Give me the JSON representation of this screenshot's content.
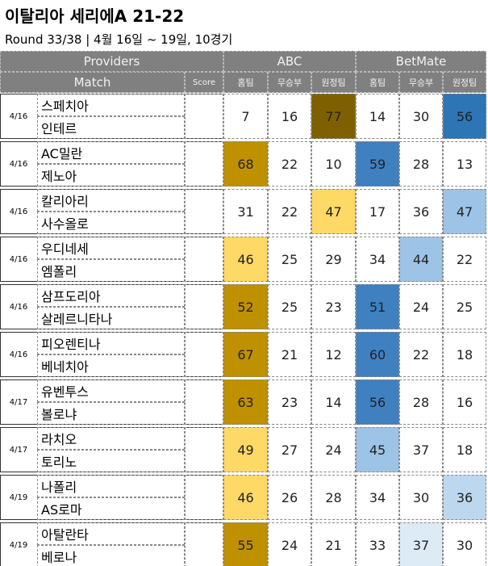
{
  "header": {
    "title": "이탈리아 세리에A 21-22",
    "subtitle": "Round 33/38 | 4월 16일 ~ 19일, 10경기"
  },
  "table": {
    "group_headers": [
      "Providers",
      "ABC",
      "BetMate"
    ],
    "columns": [
      "Match",
      "Score",
      "홈팀",
      "무승부",
      "원정팀",
      "홈팀",
      "무승부",
      "원정팀"
    ],
    "header_color": "#808080",
    "rows": [
      {
        "date": "4/16",
        "home": "스페치아",
        "away": "인테르",
        "abc": [
          7,
          16,
          77
        ],
        "betmate": [
          14,
          30,
          56
        ],
        "abc_colors": [
          null,
          null,
          "#7f6000"
        ],
        "betmate_colors": [
          null,
          null,
          "#2e75b6"
        ]
      },
      {
        "date": "4/16",
        "home": "AC밀란",
        "away": "제노아",
        "abc": [
          68,
          22,
          10
        ],
        "betmate": [
          59,
          28,
          13
        ],
        "abc_colors": [
          "#bf9000",
          null,
          null
        ],
        "betmate_colors": [
          "#3f80c0",
          null,
          null
        ]
      },
      {
        "date": "4/16",
        "home": "칼리아리",
        "away": "사수올로",
        "abc": [
          31,
          22,
          47
        ],
        "betmate": [
          17,
          36,
          47
        ],
        "abc_colors": [
          null,
          null,
          "#ffd966"
        ],
        "betmate_colors": [
          null,
          null,
          "#9dc3e6"
        ]
      },
      {
        "date": "4/16",
        "home": "우디네세",
        "away": "엠폴리",
        "abc": [
          46,
          25,
          29
        ],
        "betmate": [
          34,
          44,
          22
        ],
        "abc_colors": [
          "#ffd966",
          null,
          null
        ],
        "betmate_colors": [
          null,
          "#9dc3e6",
          null
        ]
      },
      {
        "date": "4/16",
        "home": "삼프도리아",
        "away": "살레르니타나",
        "abc": [
          52,
          25,
          23
        ],
        "betmate": [
          51,
          24,
          25
        ],
        "abc_colors": [
          "#bf9000",
          null,
          null
        ],
        "betmate_colors": [
          "#3f80c0",
          null,
          null
        ]
      },
      {
        "date": "4/16",
        "home": "피오렌티나",
        "away": "베네치아",
        "abc": [
          67,
          21,
          12
        ],
        "betmate": [
          60,
          22,
          18
        ],
        "abc_colors": [
          "#bf9000",
          null,
          null
        ],
        "betmate_colors": [
          "#3f80c0",
          null,
          null
        ]
      },
      {
        "date": "4/17",
        "home": "유벤투스",
        "away": "볼로냐",
        "abc": [
          63,
          23,
          14
        ],
        "betmate": [
          56,
          28,
          16
        ],
        "abc_colors": [
          "#bf9000",
          null,
          null
        ],
        "betmate_colors": [
          "#3f80c0",
          null,
          null
        ]
      },
      {
        "date": "4/17",
        "home": "라치오",
        "away": "토리노",
        "abc": [
          49,
          27,
          24
        ],
        "betmate": [
          45,
          37,
          18
        ],
        "abc_colors": [
          "#ffd966",
          null,
          null
        ],
        "betmate_colors": [
          "#9dc3e6",
          null,
          null
        ]
      },
      {
        "date": "4/19",
        "home": "나폴리",
        "away": "AS로마",
        "abc": [
          46,
          26,
          28
        ],
        "betmate": [
          34,
          30,
          36
        ],
        "abc_colors": [
          "#ffd966",
          null,
          null
        ],
        "betmate_colors": [
          null,
          null,
          "#bdd7ee"
        ]
      },
      {
        "date": "4/19",
        "home": "아탈란타",
        "away": "베로나",
        "abc": [
          55,
          24,
          21
        ],
        "betmate": [
          33,
          37,
          30
        ],
        "abc_colors": [
          "#bf9000",
          null,
          null
        ],
        "betmate_colors": [
          null,
          "#ddebf7",
          null
        ]
      }
    ]
  }
}
